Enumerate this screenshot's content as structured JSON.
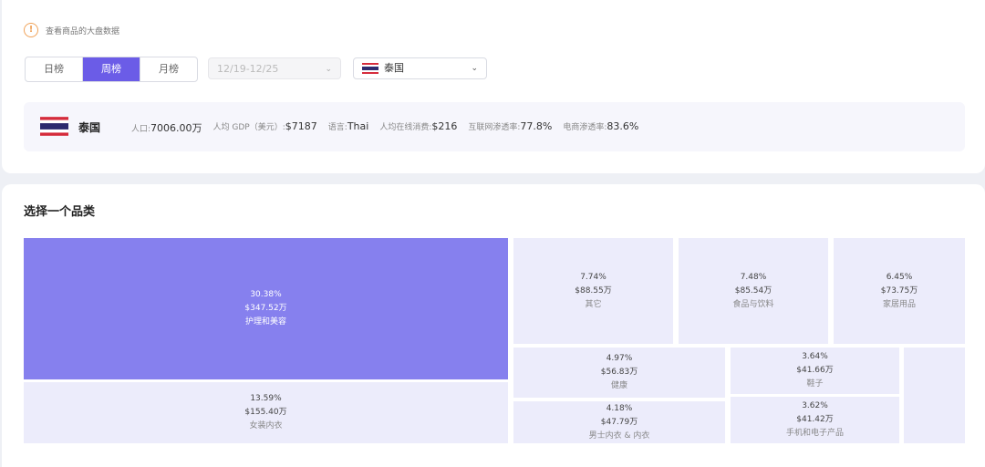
{
  "notice": {
    "text": "查看商品的大盘数据"
  },
  "period_tabs": [
    {
      "label": "日榜",
      "active": false
    },
    {
      "label": "周榜",
      "active": true
    },
    {
      "label": "月榜",
      "active": false
    }
  ],
  "date_select": {
    "value": "12/19-12/25"
  },
  "country_select": {
    "value": "泰国",
    "flag_icon": "thailand-flag-icon"
  },
  "info": {
    "country": "泰国",
    "stats": [
      {
        "label": "人口:",
        "value": "7006.00万"
      },
      {
        "label": "人均 GDP（美元）:",
        "value": "$7187"
      },
      {
        "label": "语言:",
        "value": "Thai"
      },
      {
        "label": "人均在线消费:",
        "value": "$216"
      },
      {
        "label": "互联网渗透率:",
        "value": "77.8%"
      },
      {
        "label": "电商渗透率:",
        "value": "83.6%"
      }
    ]
  },
  "section_title": "选择一个品类",
  "categories": [
    {
      "pct": "30.38%",
      "amount": "$347.52万",
      "name": "护理和美容",
      "selected": true
    },
    {
      "pct": "13.59%",
      "amount": "$155.40万",
      "name": "女装内衣"
    },
    {
      "pct": "7.74%",
      "amount": "$88.55万",
      "name": "其它"
    },
    {
      "pct": "7.48%",
      "amount": "$85.54万",
      "name": "食品与饮料"
    },
    {
      "pct": "6.45%",
      "amount": "$73.75万",
      "name": "家居用品"
    },
    {
      "pct": "4.97%",
      "amount": "$56.83万",
      "name": "健康"
    },
    {
      "pct": "4.18%",
      "amount": "$47.79万",
      "name": "男士内衣 & 内衣"
    },
    {
      "pct": "3.64%",
      "amount": "$41.66万",
      "name": "鞋子"
    },
    {
      "pct": "3.62%",
      "amount": "$41.42万",
      "name": "手机和电子产品"
    },
    {
      "pct": "",
      "amount": "",
      "name": ""
    }
  ],
  "colors": {
    "accent": "#6b5ce7",
    "tile_selected": "#8680ee",
    "tile": "#ececfb",
    "notice": "#f0a35a"
  }
}
